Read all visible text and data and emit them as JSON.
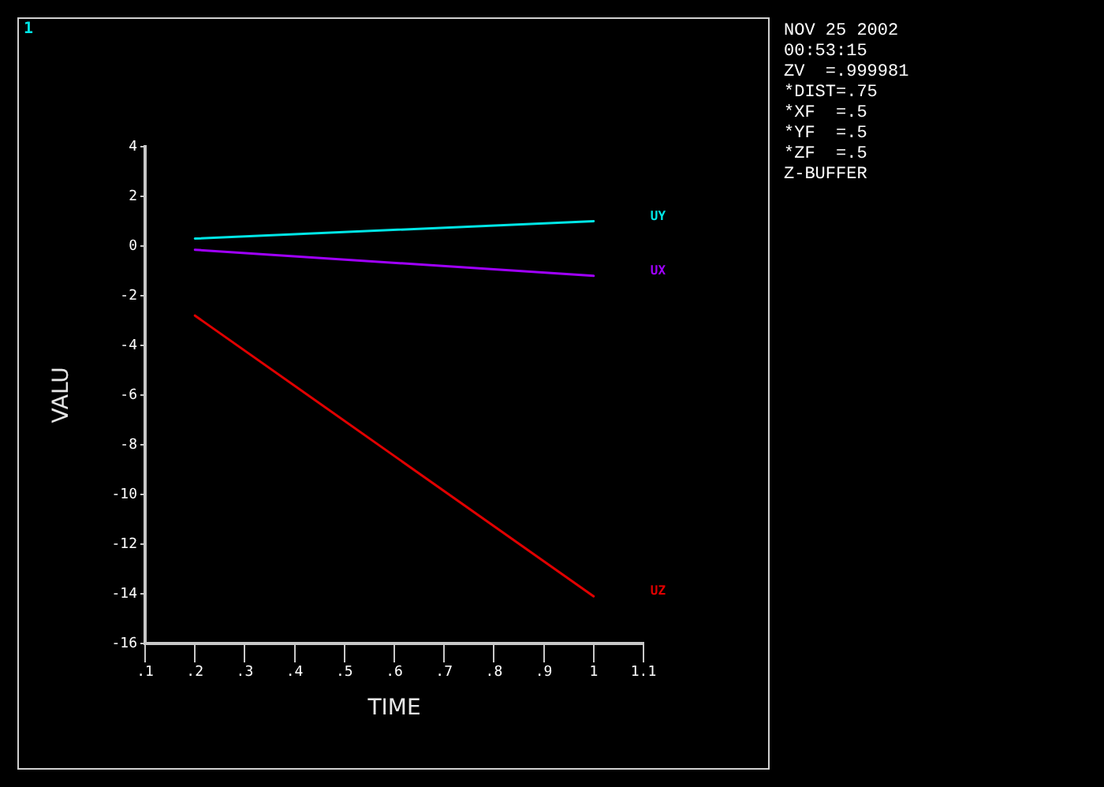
{
  "chart_data": {
    "type": "line",
    "xlabel": "TIME",
    "ylabel": "VALU",
    "x": [
      0.2,
      1
    ],
    "series": [
      {
        "name": "UY",
        "color": "#00e6e6",
        "values": [
          0.3,
          1.0
        ]
      },
      {
        "name": "UX",
        "color": "#a000ff",
        "values": [
          -0.15,
          -1.2
        ]
      },
      {
        "name": "UZ",
        "color": "#e00000",
        "values": [
          -2.8,
          -14.1
        ]
      }
    ],
    "xlim": [
      0.1,
      1.1
    ],
    "xticks": [
      {
        "value": 0.1,
        "label": ".1"
      },
      {
        "value": 0.2,
        "label": ".2"
      },
      {
        "value": 0.3,
        "label": ".3"
      },
      {
        "value": 0.4,
        "label": ".4"
      },
      {
        "value": 0.5,
        "label": ".5"
      },
      {
        "value": 0.6,
        "label": ".6"
      },
      {
        "value": 0.7,
        "label": ".7"
      },
      {
        "value": 0.8,
        "label": ".8"
      },
      {
        "value": 0.9,
        "label": ".9"
      },
      1,
      1.1
    ],
    "ylim": [
      -16,
      4
    ],
    "yticks": [
      -16,
      -14,
      -12,
      -10,
      -8,
      -6,
      -4,
      -2,
      0,
      2,
      4
    ],
    "annotations": [
      "1",
      "NOV 25 2002",
      "00:53:15",
      "ZV  =.999981",
      "*DIST=.75",
      "*XF  =.5",
      "*YF  =.5",
      "*ZF  =.5",
      "Z-BUFFER"
    ]
  }
}
